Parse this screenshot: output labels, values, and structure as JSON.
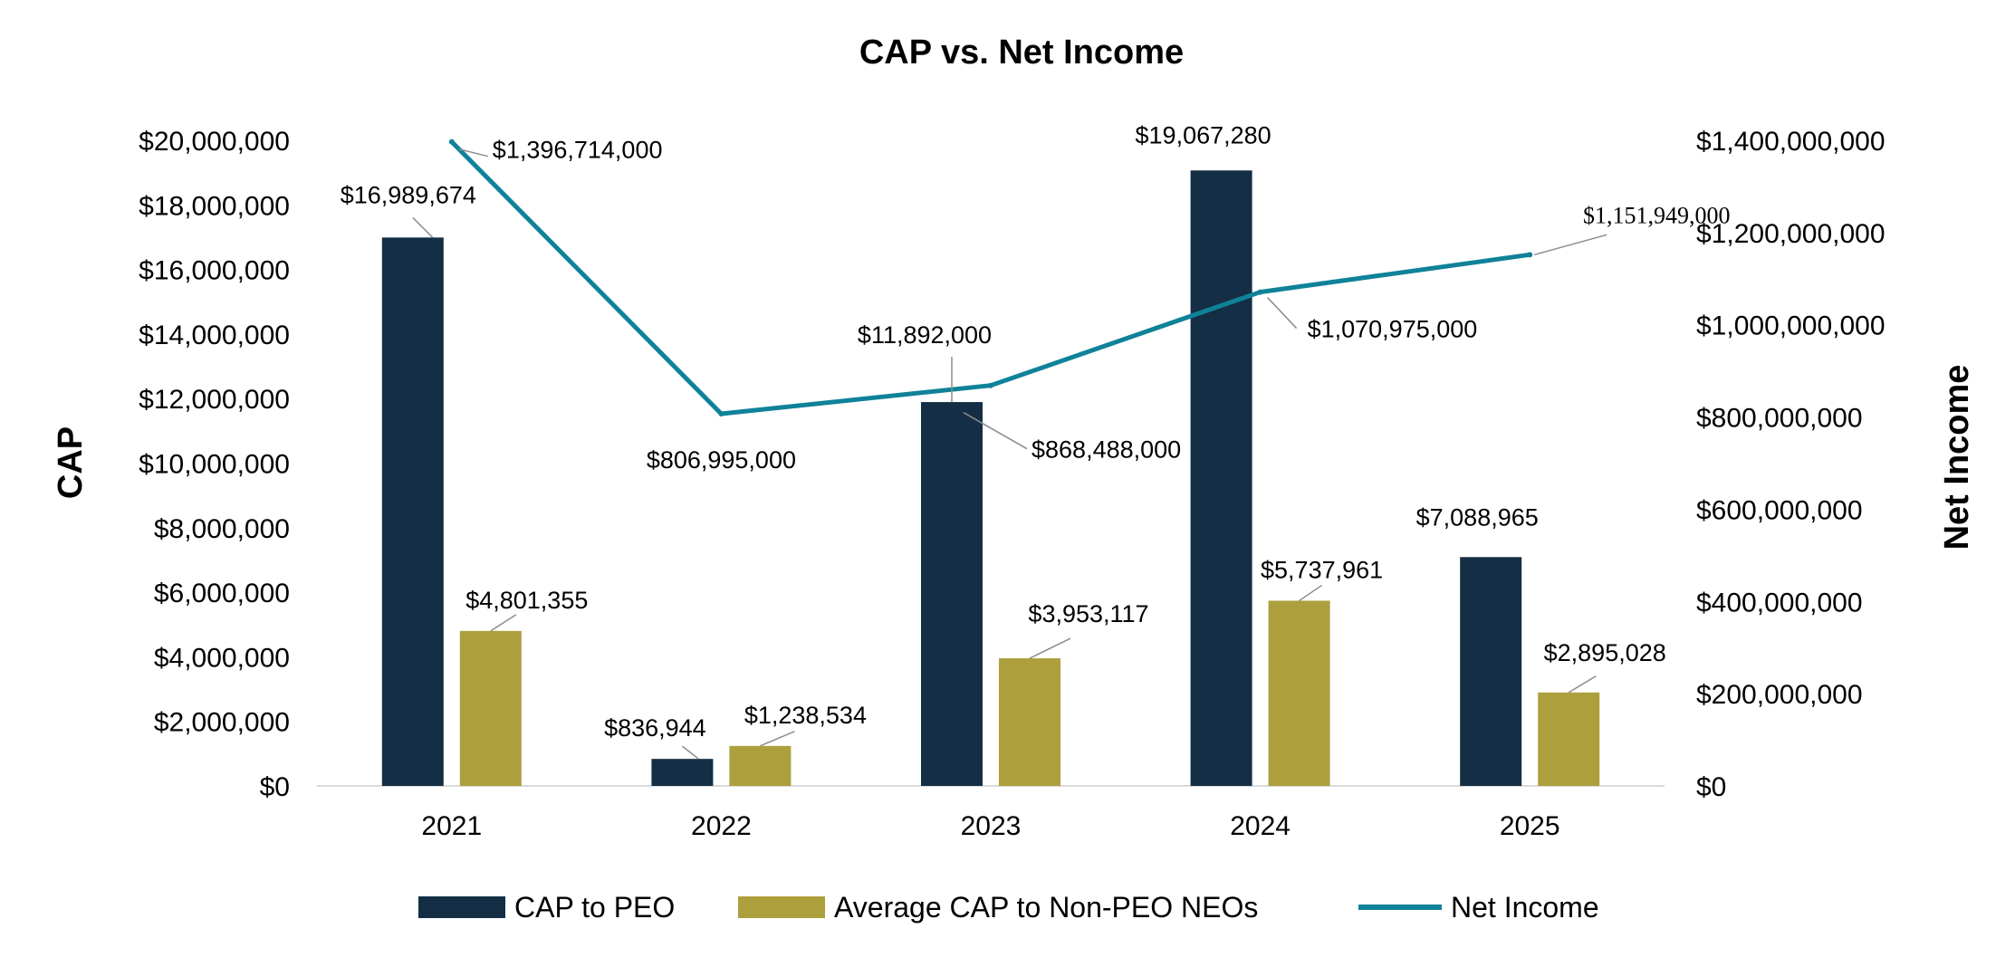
{
  "chart_data": {
    "type": "bar",
    "title": "CAP vs. Net Income",
    "categories": [
      "2021",
      "2022",
      "2023",
      "2024",
      "2025"
    ],
    "y_left": {
      "label": "CAP",
      "range": [
        0,
        20000000
      ],
      "ticks": [
        "$0",
        "$2,000,000",
        "$4,000,000",
        "$6,000,000",
        "$8,000,000",
        "$10,000,000",
        "$12,000,000",
        "$14,000,000",
        "$16,000,000",
        "$18,000,000",
        "$20,000,000"
      ]
    },
    "y_right": {
      "label": "Net Income",
      "range": [
        0,
        1400000000
      ],
      "ticks": [
        "$0",
        "$200,000,000",
        "$400,000,000",
        "$600,000,000",
        "$800,000,000",
        "$1,000,000,000",
        "$1,200,000,000",
        "$1,400,000,000"
      ]
    },
    "series": [
      {
        "name": "CAP to PEO",
        "type": "bar",
        "axis": "left",
        "color": "#142f45",
        "values": [
          16989674,
          836944,
          11892000,
          19067280,
          7088965
        ],
        "labels": [
          "$16,989,674",
          "$836,944",
          "$11,892,000",
          "$19,067,280",
          "$7,088,965"
        ]
      },
      {
        "name": "Average CAP to Non-PEO NEOs",
        "type": "bar",
        "axis": "left",
        "color": "#ad9f3c",
        "values": [
          4801355,
          1238534,
          3953117,
          5737961,
          2895028
        ],
        "labels": [
          "$4,801,355",
          "$1,238,534",
          "$3,953,117",
          "$5,737,961",
          "$2,895,028"
        ]
      },
      {
        "name": "Net Income",
        "type": "line",
        "axis": "right",
        "color": "#0f8299",
        "values": [
          1396714000,
          806995000,
          868488000,
          1070975000,
          1151949000
        ],
        "labels": [
          "$1,396,714,000",
          "$806,995,000",
          "$868,488,000",
          "$1,070,975,000",
          "$1,151,949,000"
        ]
      }
    ],
    "legend": {
      "position": "bottom"
    },
    "grid": false
  }
}
